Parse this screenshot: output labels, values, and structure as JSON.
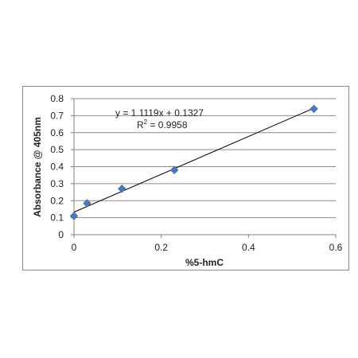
{
  "chart_data": {
    "type": "scatter",
    "title": "",
    "xlabel": "%5-hmC",
    "ylabel": "Absorbance @ 405nm",
    "xlim": [
      0,
      0.6
    ],
    "ylim": [
      0,
      0.8
    ],
    "x_ticks": [
      "0",
      "0.2",
      "0.4",
      "0.6"
    ],
    "y_ticks": [
      "0",
      "0.1",
      "0.2",
      "0.3",
      "0.4",
      "0.5",
      "0.6",
      "0.7",
      "0.8"
    ],
    "grid": "horizontal",
    "legend": "none",
    "marker_color": "#4a78b8",
    "trendline_color": "#000000",
    "points": [
      {
        "x": 0.0,
        "y": 0.11
      },
      {
        "x": 0.03,
        "y": 0.185
      },
      {
        "x": 0.11,
        "y": 0.27
      },
      {
        "x": 0.23,
        "y": 0.38
      },
      {
        "x": 0.55,
        "y": 0.74
      }
    ],
    "trendline": {
      "slope": 1.1119,
      "intercept": 0.1327,
      "x_range": [
        0,
        0.55
      ],
      "equation_text": "y = 1.1119x + 0.1327",
      "r2_prefix": "R",
      "r2_sup": "2",
      "r2_suffix": " = 0.9958"
    }
  }
}
